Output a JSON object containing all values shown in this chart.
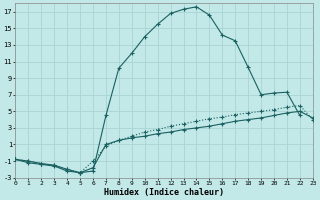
{
  "xlabel": "Humidex (Indice chaleur)",
  "bg_color": "#c2e8e8",
  "grid_color": "#aad4d4",
  "line_color": "#1a6060",
  "xlim": [
    0,
    23
  ],
  "ylim": [
    -3,
    18
  ],
  "xticks": [
    0,
    1,
    2,
    3,
    4,
    5,
    6,
    7,
    8,
    9,
    10,
    11,
    12,
    13,
    14,
    15,
    16,
    17,
    18,
    19,
    20,
    21,
    22,
    23
  ],
  "yticks": [
    -3,
    -1,
    1,
    3,
    5,
    7,
    9,
    11,
    13,
    15,
    17
  ],
  "curve1_x": [
    0,
    1,
    2,
    3,
    4,
    5,
    6,
    7,
    8,
    9,
    10,
    11,
    12,
    13,
    14,
    15,
    16,
    17,
    18,
    19,
    20,
    21,
    22
  ],
  "curve1_y": [
    -0.8,
    -1.2,
    -1.4,
    -1.6,
    -2.2,
    -2.4,
    -2.2,
    4.5,
    10.2,
    12.0,
    14.0,
    15.5,
    16.8,
    17.3,
    17.6,
    16.6,
    14.2,
    13.5,
    10.3,
    7.0,
    7.2,
    7.3,
    4.5
  ],
  "curve2_x": [
    0,
    1,
    2,
    3,
    4,
    5,
    6,
    7,
    8,
    9,
    10,
    11,
    12,
    13,
    14,
    15,
    16,
    17,
    18,
    19,
    20,
    21,
    22,
    23
  ],
  "curve2_y": [
    -0.8,
    -1.0,
    -1.3,
    -1.5,
    -2.0,
    -2.4,
    -1.0,
    0.8,
    1.5,
    2.0,
    2.5,
    2.8,
    3.2,
    3.5,
    3.8,
    4.1,
    4.3,
    4.6,
    4.8,
    5.0,
    5.2,
    5.5,
    5.7,
    4.0
  ],
  "curve3_x": [
    0,
    1,
    2,
    3,
    4,
    5,
    6,
    7,
    8,
    9,
    10,
    11,
    12,
    13,
    14,
    15,
    16,
    17,
    18,
    19,
    20,
    21,
    22,
    23
  ],
  "curve3_y": [
    -0.8,
    -1.0,
    -1.3,
    -1.5,
    -2.0,
    -2.4,
    -1.8,
    1.0,
    1.5,
    1.8,
    2.0,
    2.3,
    2.5,
    2.8,
    3.0,
    3.2,
    3.5,
    3.8,
    4.0,
    4.2,
    4.5,
    4.8,
    5.0,
    4.2
  ]
}
